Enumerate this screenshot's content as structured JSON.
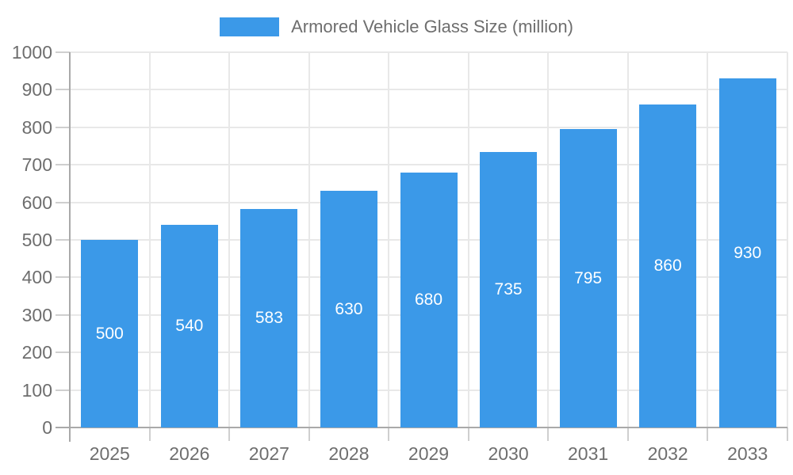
{
  "legend": {
    "label": "Armored Vehicle Glass Size (million)"
  },
  "colors": {
    "bar": "#3B99E8",
    "grid": "#E8E8E8",
    "axis": "#A9A9A9",
    "tick": "#CFCFCF",
    "text": "#6E6E6E",
    "value_label": "#FFFFFF",
    "background": "#FFFFFF"
  },
  "chart_data": {
    "type": "bar",
    "title": "Armored Vehicle Glass Size (million)",
    "categories": [
      "2025",
      "2026",
      "2027",
      "2028",
      "2029",
      "2030",
      "2031",
      "2032",
      "2033"
    ],
    "values": [
      500,
      540,
      583,
      630,
      680,
      735,
      795,
      860,
      930
    ],
    "xlabel": "",
    "ylabel": "",
    "ylim": [
      0,
      1000
    ],
    "yticks": [
      0,
      100,
      200,
      300,
      400,
      500,
      600,
      700,
      800,
      900,
      1000
    ],
    "grid": true,
    "legend_position": "top",
    "value_labels": "inside-center"
  }
}
